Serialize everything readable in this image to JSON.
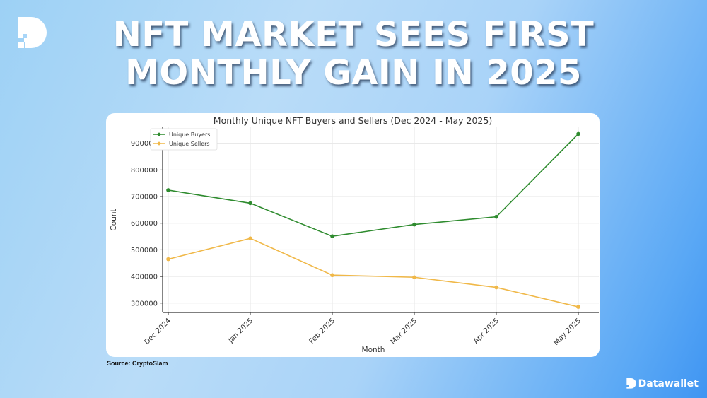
{
  "headline": {
    "line1": "NFT MARKET SEES FIRST",
    "line2": "MONTHLY GAIN IN 2025"
  },
  "source": "Source: CryptoSlam",
  "brand": {
    "name": "Datawallet",
    "logo_icon": "datawallet-d-icon"
  },
  "colors": {
    "buyers": "#2e8b2e",
    "sellers": "#f0b848",
    "background_start": "#9dd1f5",
    "background_end": "#3f95f2"
  },
  "chart_data": {
    "type": "line",
    "title": "Monthly Unique NFT Buyers and Sellers (Dec 2024 - May 2025)",
    "xlabel": "Month",
    "ylabel": "Count",
    "categories": [
      "Dec 2024",
      "Jan 2025",
      "Feb 2025",
      "Mar 2025",
      "Apr 2025",
      "May 2025"
    ],
    "series": [
      {
        "name": "Unique Buyers",
        "color": "#2e8b2e",
        "values": [
          724000,
          675000,
          551000,
          595000,
          624000,
          935000
        ]
      },
      {
        "name": "Unique Sellers",
        "color": "#f0b848",
        "values": [
          465000,
          543000,
          405000,
          397000,
          359000,
          286000
        ]
      }
    ],
    "yticks": [
      "300000",
      "400000",
      "500000",
      "600000",
      "700000",
      "800000",
      "900000"
    ],
    "ylim": [
      265000,
      960000
    ],
    "grid": true,
    "legend_position": "upper left"
  }
}
